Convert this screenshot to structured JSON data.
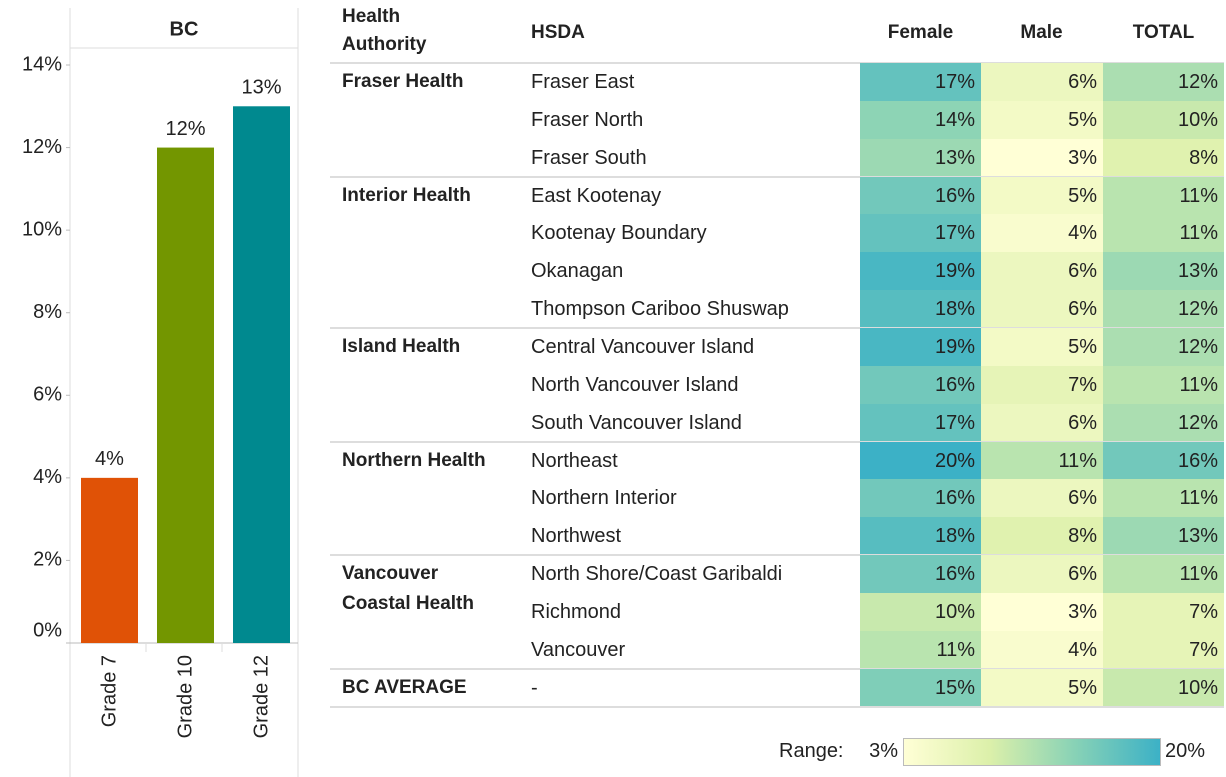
{
  "chart_data": {
    "type": "bar",
    "title": "BC",
    "categories": [
      "Grade 7",
      "Grade 10",
      "Grade 12"
    ],
    "values": [
      4,
      12,
      13
    ],
    "value_labels": [
      "4%",
      "12%",
      "13%"
    ],
    "colors": [
      "#e05206",
      "#739600",
      "#00898f"
    ],
    "ylim": [
      0,
      14
    ],
    "yticks": [
      {
        "value": 0,
        "label": "0%"
      },
      {
        "value": 2,
        "label": "2%"
      },
      {
        "value": 4,
        "label": "4%"
      },
      {
        "value": 6,
        "label": "6%"
      },
      {
        "value": 8,
        "label": "8%"
      },
      {
        "value": 10,
        "label": "10%"
      },
      {
        "value": 12,
        "label": "12%"
      },
      {
        "value": 14,
        "label": "14%"
      }
    ]
  },
  "table": {
    "header": [
      "Health Authority",
      "HSDA",
      "Female",
      "Male",
      "TOTAL"
    ],
    "groups": [
      {
        "name": "Fraser Health",
        "rows": [
          {
            "hsda": "Fraser East",
            "cells": [
              {
                "value": 17,
                "label": "17%"
              },
              {
                "value": 6,
                "label": "6%"
              },
              {
                "value": 12,
                "label": "12%"
              }
            ]
          },
          {
            "hsda": "Fraser North",
            "cells": [
              {
                "value": 14,
                "label": "14%"
              },
              {
                "value": 5,
                "label": "5%"
              },
              {
                "value": 10,
                "label": "10%"
              }
            ]
          },
          {
            "hsda": "Fraser South",
            "cells": [
              {
                "value": 13,
                "label": "13%"
              },
              {
                "value": 3,
                "label": "3%"
              },
              {
                "value": 8,
                "label": "8%"
              }
            ]
          }
        ]
      },
      {
        "name": "Interior Health",
        "rows": [
          {
            "hsda": "East Kootenay",
            "cells": [
              {
                "value": 16,
                "label": "16%"
              },
              {
                "value": 5,
                "label": "5%"
              },
              {
                "value": 11,
                "label": "11%"
              }
            ]
          },
          {
            "hsda": "Kootenay Boundary",
            "cells": [
              {
                "value": 17,
                "label": "17%"
              },
              {
                "value": 4,
                "label": "4%"
              },
              {
                "value": 11,
                "label": "11%"
              }
            ]
          },
          {
            "hsda": "Okanagan",
            "cells": [
              {
                "value": 19,
                "label": "19%"
              },
              {
                "value": 6,
                "label": "6%"
              },
              {
                "value": 13,
                "label": "13%"
              }
            ]
          },
          {
            "hsda": "Thompson Cariboo Shuswap",
            "cells": [
              {
                "value": 18,
                "label": "18%"
              },
              {
                "value": 6,
                "label": "6%"
              },
              {
                "value": 12,
                "label": "12%"
              }
            ]
          }
        ]
      },
      {
        "name": "Island Health",
        "rows": [
          {
            "hsda": "Central Vancouver Island",
            "cells": [
              {
                "value": 19,
                "label": "19%"
              },
              {
                "value": 5,
                "label": "5%"
              },
              {
                "value": 12,
                "label": "12%"
              }
            ]
          },
          {
            "hsda": "North Vancouver Island",
            "cells": [
              {
                "value": 16,
                "label": "16%"
              },
              {
                "value": 7,
                "label": "7%"
              },
              {
                "value": 11,
                "label": "11%"
              }
            ]
          },
          {
            "hsda": "South Vancouver Island",
            "cells": [
              {
                "value": 17,
                "label": "17%"
              },
              {
                "value": 6,
                "label": "6%"
              },
              {
                "value": 12,
                "label": "12%"
              }
            ]
          }
        ]
      },
      {
        "name": "Northern Health",
        "rows": [
          {
            "hsda": "Northeast",
            "cells": [
              {
                "value": 20,
                "label": "20%"
              },
              {
                "value": 11,
                "label": "11%"
              },
              {
                "value": 16,
                "label": "16%"
              }
            ]
          },
          {
            "hsda": "Northern Interior",
            "cells": [
              {
                "value": 16,
                "label": "16%"
              },
              {
                "value": 6,
                "label": "6%"
              },
              {
                "value": 11,
                "label": "11%"
              }
            ]
          },
          {
            "hsda": "Northwest",
            "cells": [
              {
                "value": 18,
                "label": "18%"
              },
              {
                "value": 8,
                "label": "8%"
              },
              {
                "value": 13,
                "label": "13%"
              }
            ]
          }
        ]
      },
      {
        "name": "Vancouver Coastal Health",
        "rows": [
          {
            "hsda": "North Shore/Coast Garibaldi",
            "cells": [
              {
                "value": 16,
                "label": "16%"
              },
              {
                "value": 6,
                "label": "6%"
              },
              {
                "value": 11,
                "label": "11%"
              }
            ]
          },
          {
            "hsda": "Richmond",
            "cells": [
              {
                "value": 10,
                "label": "10%"
              },
              {
                "value": 3,
                "label": "3%"
              },
              {
                "value": 7,
                "label": "7%"
              }
            ]
          },
          {
            "hsda": "Vancouver",
            "cells": [
              {
                "value": 11,
                "label": "11%"
              },
              {
                "value": 4,
                "label": "4%"
              },
              {
                "value": 7,
                "label": "7%"
              }
            ]
          }
        ]
      },
      {
        "name": "BC AVERAGE",
        "rows": [
          {
            "hsda": "-",
            "cells": [
              {
                "value": 15,
                "label": "15%"
              },
              {
                "value": 5,
                "label": "5%"
              },
              {
                "value": 10,
                "label": "10%"
              }
            ]
          }
        ]
      }
    ]
  },
  "legend": {
    "label": "Range:",
    "min": {
      "value": 3,
      "label": "3%"
    },
    "max": {
      "value": 20,
      "label": "20%"
    },
    "colors": [
      "#ffffd6",
      "#dcf0aa",
      "#88d2b6",
      "#3cb1c6"
    ]
  }
}
